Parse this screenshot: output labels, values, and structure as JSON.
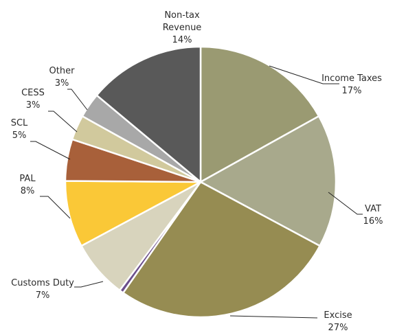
{
  "chart_data": {
    "type": "pie",
    "categories": [
      "Income Taxes",
      "VAT",
      "Excise",
      null,
      "Customs Duty",
      "PAL",
      "SCL",
      "CESS",
      "Other",
      "Non-tax Revenue"
    ],
    "values": [
      17,
      16,
      27,
      0.5,
      7,
      8,
      5,
      3,
      3,
      14
    ],
    "value_labels": [
      "17%",
      "16%",
      "27%",
      null,
      "7%",
      "8%",
      "5%",
      "3%",
      "3%",
      "14%"
    ],
    "colors": [
      "#9a9a72",
      "#a8a98c",
      "#968c52",
      "#6b4e8c",
      "#d8d4bd",
      "#fac837",
      "#a8603a",
      "#d1c99d",
      "#a8a8a8",
      "#595959"
    ]
  }
}
